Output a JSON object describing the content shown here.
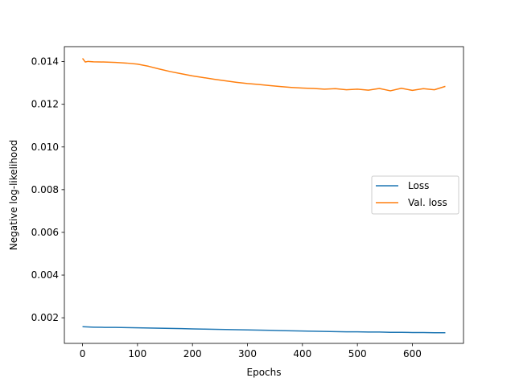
{
  "chart_data": {
    "type": "line",
    "title": "",
    "xlabel": "Epochs",
    "ylabel": "Negative log-likelihood",
    "xlim": [
      -33,
      693
    ],
    "ylim": [
      0.0008,
      0.0147
    ],
    "xticks": [
      0,
      100,
      200,
      300,
      400,
      500,
      600
    ],
    "xtick_labels": [
      "0",
      "100",
      "200",
      "300",
      "400",
      "500",
      "600"
    ],
    "yticks": [
      0.002,
      0.004,
      0.006,
      0.008,
      0.01,
      0.012,
      0.014
    ],
    "ytick_labels": [
      "0.002",
      "0.004",
      "0.006",
      "0.008",
      "0.010",
      "0.012",
      "0.014"
    ],
    "grid": false,
    "legend_position": "center-right",
    "series": [
      {
        "name": "Loss",
        "color": "#1f77b4",
        "x": [
          0,
          20,
          40,
          60,
          80,
          100,
          120,
          140,
          160,
          180,
          200,
          220,
          240,
          260,
          280,
          300,
          320,
          340,
          360,
          380,
          400,
          420,
          440,
          460,
          480,
          500,
          520,
          540,
          560,
          580,
          600,
          620,
          640,
          660
        ],
        "values": [
          0.00158,
          0.00156,
          0.00155,
          0.00155,
          0.00154,
          0.00153,
          0.00152,
          0.00151,
          0.0015,
          0.00149,
          0.00148,
          0.00147,
          0.00146,
          0.00145,
          0.00144,
          0.00143,
          0.00142,
          0.00141,
          0.0014,
          0.00139,
          0.00138,
          0.00137,
          0.00136,
          0.00135,
          0.00134,
          0.00134,
          0.00133,
          0.00133,
          0.00132,
          0.00132,
          0.00131,
          0.00131,
          0.0013,
          0.0013
        ]
      },
      {
        "name": "Val. loss",
        "color": "#ff7f0e",
        "x": [
          0,
          5,
          10,
          20,
          40,
          60,
          80,
          100,
          120,
          140,
          160,
          180,
          200,
          220,
          240,
          260,
          280,
          300,
          320,
          340,
          360,
          380,
          400,
          420,
          440,
          460,
          480,
          500,
          520,
          540,
          560,
          580,
          600,
          620,
          640,
          660
        ],
        "values": [
          0.01415,
          0.01398,
          0.01401,
          0.01399,
          0.01398,
          0.01396,
          0.01393,
          0.01388,
          0.01378,
          0.01365,
          0.01353,
          0.01343,
          0.01333,
          0.01325,
          0.01317,
          0.0131,
          0.01303,
          0.01297,
          0.01293,
          0.01288,
          0.01283,
          0.01279,
          0.01276,
          0.01274,
          0.01271,
          0.01273,
          0.01268,
          0.01271,
          0.01266,
          0.01274,
          0.01263,
          0.01275,
          0.01265,
          0.01273,
          0.01268,
          0.01284
        ]
      }
    ]
  }
}
